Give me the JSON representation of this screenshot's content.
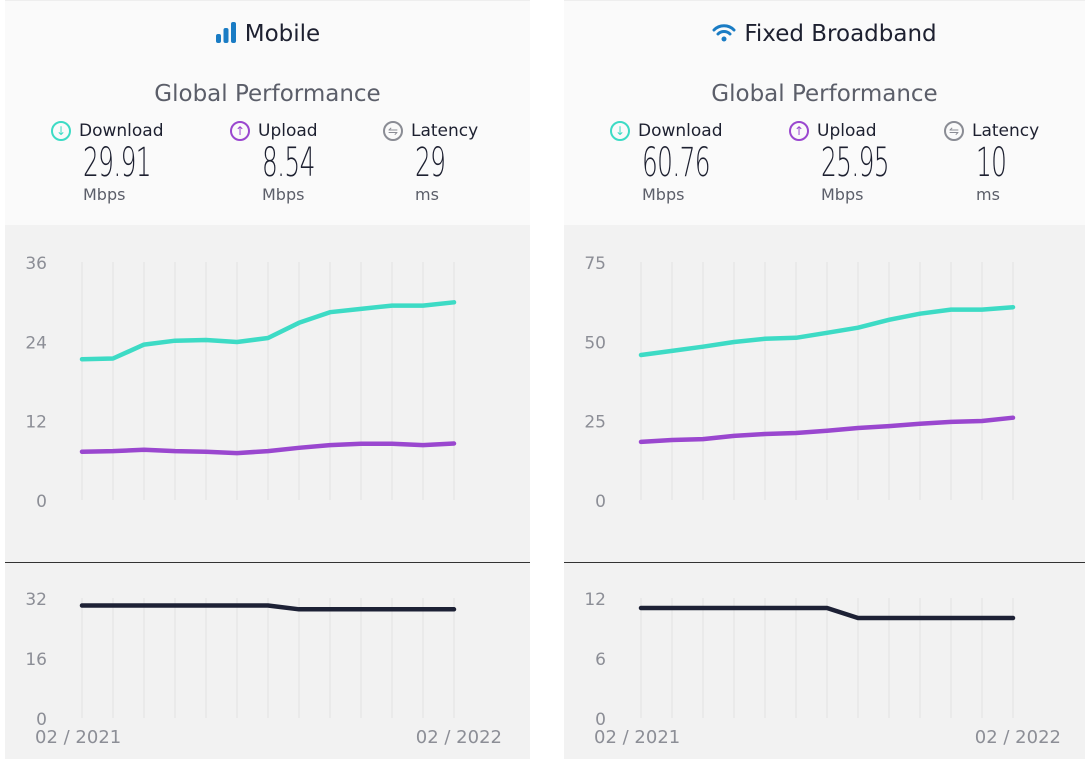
{
  "colors": {
    "download": "#3ddbc5",
    "upload": "#9a47cf",
    "latency": "#1d2135",
    "grid": "#e2e2e2",
    "icon_blue": "#1a7cc4"
  },
  "panels": [
    {
      "title": "Mobile",
      "icon": "signal-bars-icon",
      "subtitle": "Global Performance",
      "metrics": [
        {
          "label": "Download",
          "value": "29.91",
          "unit": "Mbps"
        },
        {
          "label": "Upload",
          "value": "8.54",
          "unit": "Mbps"
        },
        {
          "label": "Latency",
          "value": "29",
          "unit": "ms"
        }
      ]
    },
    {
      "title": "Fixed Broadband",
      "icon": "wifi-icon",
      "subtitle": "Global Performance",
      "metrics": [
        {
          "label": "Download",
          "value": "60.76",
          "unit": "Mbps"
        },
        {
          "label": "Upload",
          "value": "25.95",
          "unit": "Mbps"
        },
        {
          "label": "Latency",
          "value": "10",
          "unit": "ms"
        }
      ]
    }
  ],
  "chart_data": [
    {
      "type": "line",
      "panel": "Mobile",
      "x_tick_labels": [
        "02 / 2021",
        "02 / 2022"
      ],
      "grid": "vertical",
      "ylim": [
        0,
        36
      ],
      "yticks": [
        0,
        12,
        24,
        36
      ],
      "series": [
        {
          "name": "Download",
          "values": [
            21.3,
            21.4,
            23.5,
            24.1,
            24.2,
            23.9,
            24.5,
            26.8,
            28.4,
            28.9,
            29.4,
            29.4,
            29.91
          ]
        },
        {
          "name": "Upload",
          "values": [
            7.3,
            7.4,
            7.6,
            7.4,
            7.3,
            7.1,
            7.4,
            7.9,
            8.3,
            8.5,
            8.5,
            8.3,
            8.54
          ]
        }
      ]
    },
    {
      "type": "line",
      "panel": "Mobile",
      "ylim": [
        0,
        32
      ],
      "yticks": [
        0,
        16,
        32
      ],
      "series": [
        {
          "name": "Latency",
          "values": [
            30,
            30,
            30,
            30,
            30,
            30,
            30,
            29,
            29,
            29,
            29,
            29,
            29
          ]
        }
      ]
    },
    {
      "type": "line",
      "panel": "Fixed Broadband",
      "x_tick_labels": [
        "02 / 2021",
        "02 / 2022"
      ],
      "grid": "vertical",
      "ylim": [
        0,
        75
      ],
      "yticks": [
        0,
        25,
        50,
        75
      ],
      "series": [
        {
          "name": "Download",
          "values": [
            45.7,
            47,
            48.3,
            49.8,
            50.8,
            51.1,
            52.7,
            54.3,
            56.8,
            58.7,
            60,
            60,
            60.76
          ]
        },
        {
          "name": "Upload",
          "values": [
            18.3,
            18.9,
            19.2,
            20.2,
            20.8,
            21.1,
            21.8,
            22.7,
            23.3,
            24,
            24.6,
            24.9,
            25.95
          ]
        }
      ]
    },
    {
      "type": "line",
      "panel": "Fixed Broadband",
      "ylim": [
        0,
        12
      ],
      "yticks": [
        0,
        6,
        12
      ],
      "series": [
        {
          "name": "Latency",
          "values": [
            11,
            11,
            11,
            11,
            11,
            11,
            11,
            10,
            10,
            10,
            10,
            10,
            10
          ]
        }
      ]
    }
  ]
}
